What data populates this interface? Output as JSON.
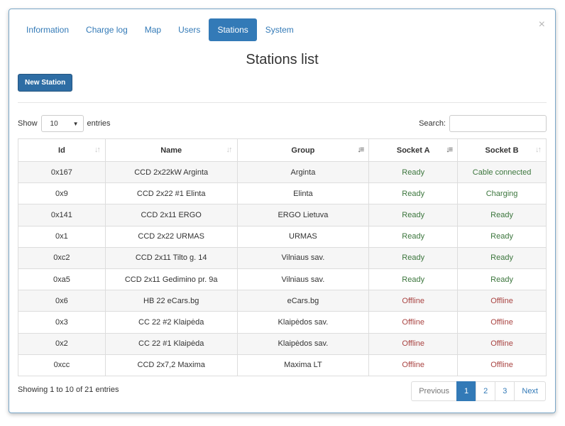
{
  "tabs": [
    {
      "label": "Information"
    },
    {
      "label": "Charge log"
    },
    {
      "label": "Map"
    },
    {
      "label": "Users"
    },
    {
      "label": "Stations"
    },
    {
      "label": "System"
    }
  ],
  "active_tab": "Stations",
  "close_glyph": "×",
  "title": "Stations list",
  "new_button": "New Station",
  "length": {
    "show": "Show",
    "value": "10",
    "entries": "entries"
  },
  "search": {
    "label": "Search:",
    "value": "",
    "placeholder": ""
  },
  "columns": [
    "Id",
    "Name",
    "Group",
    "Socket A",
    "Socket B"
  ],
  "rows": [
    {
      "id": "0x167",
      "name": "CCD 2x22kW Arginta",
      "group": "Arginta",
      "a": "Ready",
      "b": "Cable connected"
    },
    {
      "id": "0x9",
      "name": "CCD 2x22 #1 Elinta",
      "group": "Elinta",
      "a": "Ready",
      "b": "Charging"
    },
    {
      "id": "0x141",
      "name": "CCD 2x11 ERGO",
      "group": "ERGO Lietuva",
      "a": "Ready",
      "b": "Ready"
    },
    {
      "id": "0x1",
      "name": "CCD 2x22 URMAS",
      "group": "URMAS",
      "a": "Ready",
      "b": "Ready"
    },
    {
      "id": "0xc2",
      "name": "CCD 2x11 Tilto g. 14",
      "group": "Vilniaus sav.",
      "a": "Ready",
      "b": "Ready"
    },
    {
      "id": "0xa5",
      "name": "CCD 2x11 Gedimino pr. 9a",
      "group": "Vilniaus sav.",
      "a": "Ready",
      "b": "Ready"
    },
    {
      "id": "0x6",
      "name": "HB 22 eCars.bg",
      "group": "eCars.bg",
      "a": "Offline",
      "b": "Offline"
    },
    {
      "id": "0x3",
      "name": "CC 22 #2 Klaipėda",
      "group": "Klaipėdos sav.",
      "a": "Offline",
      "b": "Offline"
    },
    {
      "id": "0x2",
      "name": "CC 22 #1 Klaipėda",
      "group": "Klaipėdos sav.",
      "a": "Offline",
      "b": "Offline"
    },
    {
      "id": "0xcc",
      "name": "CCD 2x7,2 Maxima",
      "group": "Maxima LT",
      "a": "Offline",
      "b": "Offline"
    }
  ],
  "info": "Showing 1 to 10 of 21 entries",
  "pagination": {
    "previous": "Previous",
    "pages": [
      "1",
      "2",
      "3"
    ],
    "active": "1",
    "next": "Next"
  },
  "colors": {
    "accent": "#337ab7",
    "ready": "#3c763d",
    "offline": "#a94442"
  }
}
